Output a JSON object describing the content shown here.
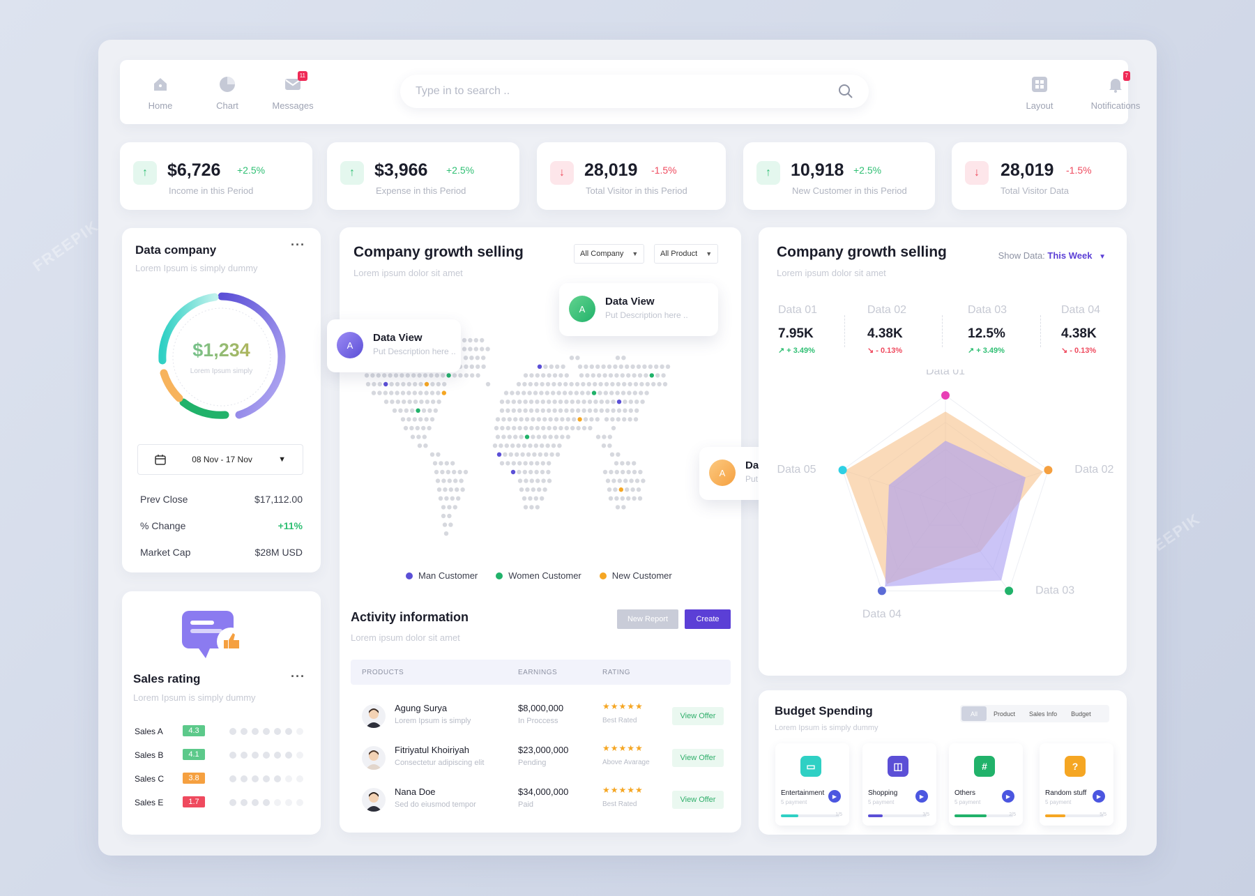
{
  "nav": {
    "items": [
      {
        "label": "Home",
        "icon": "home-icon"
      },
      {
        "label": "Chart",
        "icon": "pie-chart-icon"
      },
      {
        "label": "Messages",
        "icon": "mail-icon",
        "badge": "11"
      }
    ],
    "right_items": [
      {
        "label": "Layout",
        "icon": "grid-icon"
      },
      {
        "label": "Notifications",
        "icon": "bell-icon",
        "badge": "7"
      }
    ],
    "search_placeholder": "Type in to search .."
  },
  "stats": [
    {
      "value": "$6,726",
      "change": "+2.5%",
      "label": "Income in this Period",
      "trend": "up"
    },
    {
      "value": "$3,966",
      "change": "+2.5%",
      "label": "Expense in this Period",
      "trend": "up"
    },
    {
      "value": "28,019",
      "change": "-1.5%",
      "label": "Total Visitor in this Period",
      "trend": "down"
    },
    {
      "value": "10,918",
      "change": "+2.5%",
      "label": "New Customer in this Period",
      "trend": "up"
    },
    {
      "value": "28,019",
      "change": "-1.5%",
      "label": "Total Visitor Data",
      "trend": "down"
    }
  ],
  "data_company": {
    "title": "Data company",
    "subtitle": "Lorem Ipsum is simply dummy",
    "gauge_value": "$1,234",
    "gauge_caption": "Lorem Ipsum simply",
    "date_range": "08 Nov - 17 Nov",
    "rows": [
      {
        "label": "Prev Close",
        "value": "$17,112.00"
      },
      {
        "label": "% Change",
        "value": "+11%"
      },
      {
        "label": "Market Cap",
        "value": "$28M USD"
      }
    ]
  },
  "sales_rating": {
    "title": "Sales rating",
    "subtitle": "Lorem Ipsum is simply dummy",
    "items": [
      {
        "label": "Sales A",
        "score": "4.3",
        "color": "#5cc98a",
        "filled": 6
      },
      {
        "label": "Sales B",
        "score": "4.1",
        "color": "#5cc98a",
        "filled": 6
      },
      {
        "label": "Sales C",
        "score": "3.8",
        "color": "#f5a040",
        "filled": 5
      },
      {
        "label": "Sales E",
        "score": "1.7",
        "color": "#ef4a5e",
        "filled": 4
      }
    ]
  },
  "growth_map": {
    "title": "Company growth selling",
    "subtitle": "Lorem ipsum dolor sit amet",
    "filter_company": "All Company",
    "filter_product": "All Product",
    "tooltips": [
      {
        "avatar": "A",
        "title": "Data View",
        "desc": "Put Description here .."
      },
      {
        "avatar": "A",
        "title": "Data View",
        "desc": "Put Description here .."
      },
      {
        "avatar": "A",
        "title": "Data View",
        "desc": "Put Description here .."
      }
    ],
    "legend": [
      {
        "label": "Man Customer",
        "color": "#5b4fd6"
      },
      {
        "label": "Women Customer",
        "color": "#21b26a"
      },
      {
        "label": "New Customer",
        "color": "#f5a623"
      }
    ]
  },
  "activity": {
    "title": "Activity information",
    "subtitle": "Lorem ipsum dolor sit amet",
    "new_report": "New Report",
    "create": "Create",
    "headers": [
      "PRODUCTS",
      "EARNINGS",
      "RATING"
    ],
    "rows": [
      {
        "name": "Agung Surya",
        "desc": "Lorem Ipsum is simply",
        "earning": "$8,000,000",
        "status": "In Proccess",
        "stars": "★★★★★",
        "rating": "Best Rated",
        "action": "View Offer"
      },
      {
        "name": "Fitriyatul Khoiriyah",
        "desc": "Consectetur adipiscing elit",
        "earning": "$23,000,000",
        "status": "Pending",
        "stars": "★★★★★",
        "rating": "Above Avarage",
        "action": "View Offer"
      },
      {
        "name": "Nana Doe",
        "desc": "Sed do eiusmod tempor",
        "earning": "$34,000,000",
        "status": "Paid",
        "stars": "★★★★★",
        "rating": "Best Rated",
        "action": "View Offer"
      }
    ]
  },
  "growth_radar": {
    "title": "Company growth selling",
    "subtitle": "Lorem ipsum dolor sit amet",
    "show_label": "Show Data:",
    "show_value": "This Week",
    "kpis": [
      {
        "label": "Data 01",
        "value": "7.95K",
        "change": "+ 3.49%",
        "trend": "up"
      },
      {
        "label": "Data 02",
        "value": "4.38K",
        "change": "- 0.13%",
        "trend": "down"
      },
      {
        "label": "Data 03",
        "value": "12.5%",
        "change": "+ 3.49%",
        "trend": "up"
      },
      {
        "label": "Data 04",
        "value": "4.38K",
        "change": "- 0.13%",
        "trend": "down"
      }
    ]
  },
  "budget": {
    "title": "Budget Spending",
    "subtitle": "Lorem Ipsum is simply dummy",
    "tabs": [
      "All",
      "Product",
      "Sales Info",
      "Budget"
    ],
    "cards": [
      {
        "name": "Entertainment",
        "payment": "5 payment",
        "fraction": "1/5",
        "progress": 0.3,
        "color": "#2fd0c4",
        "icon": "tv-icon",
        "glyph": "▭"
      },
      {
        "name": "Shopping",
        "payment": "5 payment",
        "fraction": "3/5",
        "progress": 0.25,
        "color": "#5b4fd6",
        "icon": "shopping-bag-icon",
        "glyph": "◫"
      },
      {
        "name": "Others",
        "payment": "5 payment",
        "fraction": "2/5",
        "progress": 0.55,
        "color": "#21b26a",
        "icon": "hash-icon",
        "glyph": "#"
      },
      {
        "name": "Random stuff",
        "payment": "5 payment",
        "fraction": "5/5",
        "progress": 0.35,
        "color": "#f5a623",
        "icon": "question-icon",
        "glyph": "?"
      }
    ]
  },
  "chart_data": {
    "type": "radar",
    "categories": [
      "Data 01",
      "Data 02",
      "Data 03",
      "Data 04",
      "Data 05"
    ],
    "series": [
      {
        "values": [
          0.58,
          0.78,
          0.88,
          0.95,
          0.55
        ],
        "color": "#a99cf2"
      },
      {
        "values": [
          0.85,
          0.95,
          0.55,
          0.92,
          0.98
        ],
        "color": "#f7c28a"
      }
    ]
  }
}
